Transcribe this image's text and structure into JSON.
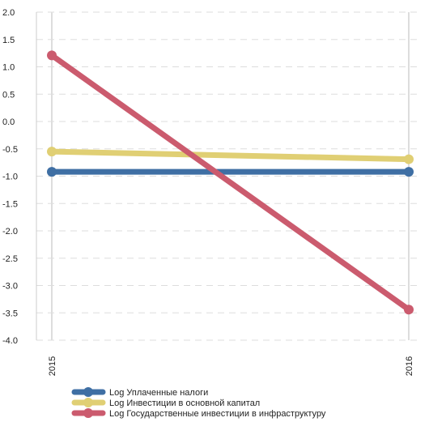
{
  "chart_data": {
    "type": "line",
    "x": [
      "2015",
      "2016"
    ],
    "ylim": [
      -4.0,
      2.0
    ],
    "yticks": [
      "2.0",
      "1.5",
      "1.0",
      "0.5",
      "0.0",
      "-0.5",
      "-1.0",
      "-1.5",
      "-2.0",
      "-2.5",
      "-3.0",
      "-3.5",
      "-4.0"
    ],
    "grid": true,
    "legend_position": "bottom-left",
    "series": [
      {
        "name": "Log Уплаченные налоги",
        "values": [
          -0.92,
          -0.92
        ],
        "color": "#3f6fa4"
      },
      {
        "name": "Log Инвестиции в основной капитал",
        "values": [
          -0.55,
          -0.69
        ],
        "color": "#e0cf74"
      },
      {
        "name": "Log Государственные инвестиции в инфраструктуру",
        "values": [
          1.21,
          -3.44
        ],
        "color": "#cb5b6e"
      }
    ]
  }
}
